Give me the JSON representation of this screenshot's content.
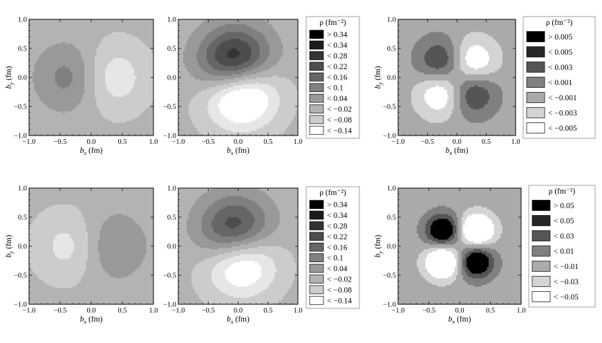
{
  "chart_data": [
    {
      "type": "heatmap",
      "label": "top-1",
      "xlabel": "b_x (fm)",
      "ylabel": "b_y (fm)",
      "xlim": [
        -1.0,
        1.0
      ],
      "ylim": [
        -1.0,
        1.0
      ],
      "xticks": [
        "−1.0",
        "−0.5",
        "0.0",
        "0.5",
        "1.0"
      ],
      "yticks": [
        "−1.0",
        "−0.5",
        "0.0",
        "0.5",
        "1.0"
      ],
      "pattern": "dipole-x",
      "sign": 1,
      "amplitude": 0.19,
      "sigma": 0.42,
      "shift": 0.22,
      "levels": [
        0.34,
        0.34,
        0.28,
        0.22,
        0.16,
        0.1,
        0.04,
        -0.02,
        -0.08,
        -0.14
      ],
      "legend": {
        "title": "ρ (fm⁻²)",
        "entries": [
          "> 0.34",
          "< 0.34",
          "< 0.28",
          "< 0.22",
          "< 0.16",
          "< 0.1",
          "< 0.04",
          "< −0.02",
          "< −0.08",
          "< −0.14"
        ],
        "colors": [
          "#000000",
          "#1c1c1c",
          "#333333",
          "#4d4d4d",
          "#666666",
          "#808080",
          "#999999",
          "#b3b3b3",
          "#cccccc",
          "#ffffff"
        ]
      }
    },
    {
      "type": "heatmap",
      "label": "top-2",
      "xlabel": "b_x (fm)",
      "ylabel": "",
      "xlim": [
        -1.0,
        1.0
      ],
      "ylim": [
        -1.0,
        1.0
      ],
      "xticks": [
        "−1.0",
        "−0.5",
        "0.0",
        "0.5",
        "1.0"
      ],
      "yticks": [
        "−1.0",
        "−0.5",
        "0.0",
        "0.5",
        "1.0"
      ],
      "pattern": "dipole-diag",
      "sign": 1,
      "amplitude": 0.5,
      "sigma": 0.42,
      "shift": 0.22,
      "levels": [
        0.34,
        0.34,
        0.28,
        0.22,
        0.16,
        0.1,
        0.04,
        -0.02,
        -0.08,
        -0.14
      ]
    },
    {
      "type": "heatmap",
      "label": "top-3",
      "xlabel": "b_x (fm)",
      "ylabel": "b_y (fm)",
      "xlim": [
        -1.0,
        1.0
      ],
      "ylim": [
        -1.0,
        1.0
      ],
      "xticks": [
        "−1.0",
        "−0.5",
        "0.0",
        "0.5",
        "1.0"
      ],
      "yticks": [
        "−1.0",
        "−0.5",
        "0.0",
        "0.5",
        "1.0"
      ],
      "pattern": "quadrupole",
      "sign": -1,
      "amplitude": 0.012,
      "sigma": 0.33,
      "levels": [
        0.005,
        0.005,
        0.003,
        0.001,
        -0.001,
        -0.003,
        -0.005
      ],
      "legend": {
        "title": "ρ (fm⁻²)",
        "entries": [
          "> 0.005",
          "< 0.005",
          "< 0.003",
          "< 0.001",
          "< −0.001",
          "< −0.003",
          "< −0.005"
        ],
        "colors": [
          "#000000",
          "#262626",
          "#555555",
          "#808080",
          "#aaaaaa",
          "#d4d4d4",
          "#ffffff"
        ]
      }
    },
    {
      "type": "heatmap",
      "label": "bottom-1",
      "xlabel": "b_x (fm)",
      "ylabel": "b_y (fm)",
      "xlim": [
        -1.0,
        1.0
      ],
      "ylim": [
        -1.0,
        1.0
      ],
      "xticks": [
        "−1.0",
        "−0.5",
        "0.0",
        "0.5",
        "1.0"
      ],
      "yticks": [
        "−1.0",
        "−0.5",
        "0.0",
        "0.5",
        "1.0"
      ],
      "pattern": "dipole-x",
      "sign": -1,
      "amplitude": 0.16,
      "sigma": 0.42,
      "shift": 0.22,
      "levels": [
        0.34,
        0.34,
        0.28,
        0.22,
        0.16,
        0.1,
        0.04,
        -0.02,
        -0.08,
        -0.14
      ]
    },
    {
      "type": "heatmap",
      "label": "bottom-2",
      "xlabel": "b_x (fm)",
      "ylabel": "",
      "xlim": [
        -1.0,
        1.0
      ],
      "ylim": [
        -1.0,
        1.0
      ],
      "xticks": [
        "−1.0",
        "−0.5",
        "0.0",
        "0.5",
        "1.0"
      ],
      "yticks": [
        "−1.0",
        "−0.5",
        "0.0",
        "0.5",
        "1.0"
      ],
      "pattern": "dipole-diag",
      "sign": 1,
      "amplitude": 0.4,
      "sigma": 0.42,
      "shift": 0.22,
      "levels": [
        0.34,
        0.34,
        0.28,
        0.22,
        0.16,
        0.1,
        0.04,
        -0.02,
        -0.08,
        -0.14
      ],
      "legend": {
        "title": "ρ (fm⁻²)",
        "entries": [
          "> 0.34",
          "< 0.34",
          "< 0.28",
          "< 0.22",
          "< 0.16",
          "< 0.1",
          "< 0.04",
          "< −0.02",
          "< −0.08",
          "< −0.14"
        ],
        "colors": [
          "#000000",
          "#1c1c1c",
          "#333333",
          "#4d4d4d",
          "#666666",
          "#808080",
          "#999999",
          "#b3b3b3",
          "#cccccc",
          "#ffffff"
        ]
      }
    },
    {
      "type": "heatmap",
      "label": "bottom-3",
      "xlabel": "b_x (fm)",
      "ylabel": "b_y (fm)",
      "xlim": [
        -1.0,
        1.0
      ],
      "ylim": [
        -1.0,
        1.0
      ],
      "xticks": [
        "−1.0",
        "−0.5",
        "0.0",
        "0.5",
        "1.0"
      ],
      "yticks": [
        "−1.0",
        "−0.5",
        "0.0",
        "0.5",
        "1.0"
      ],
      "pattern": "quadrupole-small",
      "sign": -1,
      "amplitude": 0.09,
      "sigma": 0.2,
      "levels": [
        0.05,
        0.05,
        0.03,
        0.01,
        -0.01,
        -0.03,
        -0.05
      ],
      "legend": {
        "title": "ρ (fm⁻²)",
        "entries": [
          "> 0.05",
          "< 0.05",
          "< 0.03",
          "< 0.01",
          "< −0.01",
          "< −0.03",
          "< −0.05"
        ],
        "colors": [
          "#000000",
          "#262626",
          "#555555",
          "#808080",
          "#aaaaaa",
          "#d4d4d4",
          "#ffffff"
        ]
      }
    }
  ]
}
